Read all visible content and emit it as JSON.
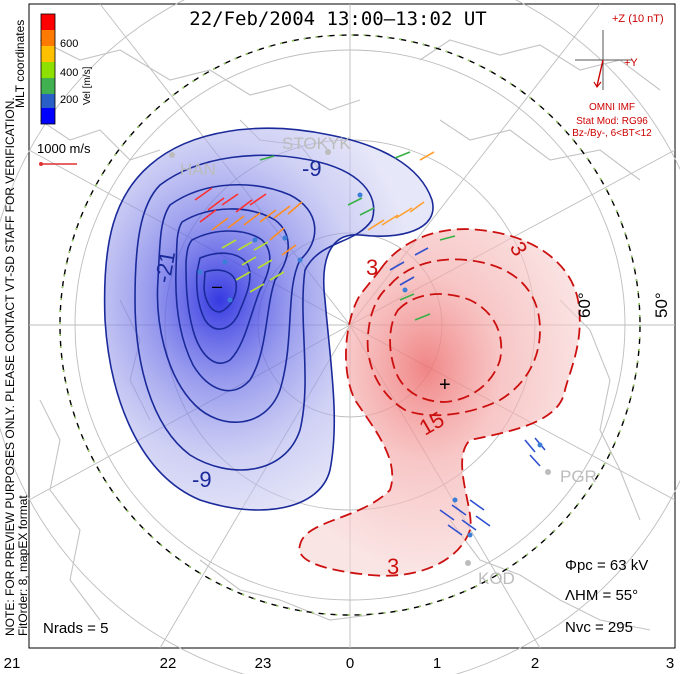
{
  "title": "22/Feb/2004 13:00–13:02 UT",
  "legend": {
    "side_label_1": "MLT coordinates",
    "side_label_2": "Vel [m/s]",
    "ticks": [
      "600",
      "400",
      "200"
    ],
    "colors": [
      "#ff0000",
      "#ff8000",
      "#ffc000",
      "#8ee000",
      "#40c040",
      "#2050c0",
      "#0000ff"
    ],
    "ref_vector_label": "1000 m/s"
  },
  "imf": {
    "z_label": "+Z (10 nT)",
    "y_label": "+Y",
    "line1": "OMNI IMF",
    "line2": "Stat Mod: RG96",
    "line3": "Bz-/By-, 6<BT<12"
  },
  "note": {
    "line1": "NOTE: FOR PREVIEW PURPOSES ONLY. PLEASE CONTACT VT-SD STAFF FOR VERIFICATION.",
    "line2": "FitOrder: 8, mapEX format"
  },
  "stations": [
    "STOKYK",
    "HAN",
    "PGR",
    "KOD"
  ],
  "contours": {
    "neg_labels": [
      "-9",
      "-21",
      "-9"
    ],
    "pos_labels": [
      "3",
      "3",
      "15",
      "3"
    ],
    "min_marker": "–",
    "max_marker": "+"
  },
  "lat_labels": [
    "60°",
    "50°"
  ],
  "mlt_ticks": [
    "21",
    "22",
    "23",
    "0",
    "1",
    "2",
    "3"
  ],
  "stats": {
    "phi_pc": "Φpc = 63 kV",
    "lambda_hm": "ΛHM = 55°",
    "n_vc": "Nvc = 295",
    "n_rads": "Nrads = 5"
  },
  "colors": {
    "negative_line": "#1a2a9a",
    "negative_fill": "#3f45d8",
    "positive_line": "#cc1010",
    "positive_fill": "#f08080",
    "imf_text": "#cc0000"
  }
}
